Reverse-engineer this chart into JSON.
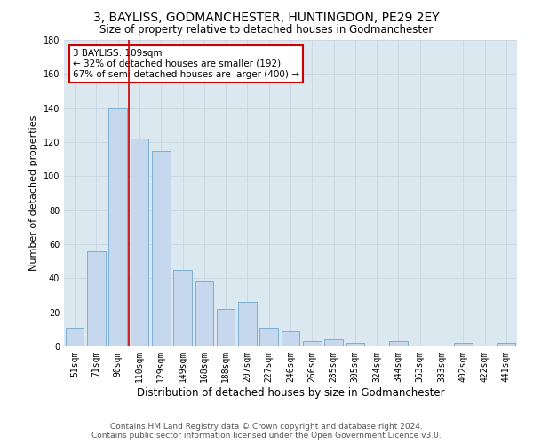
{
  "title1": "3, BAYLISS, GODMANCHESTER, HUNTINGDON, PE29 2EY",
  "title2": "Size of property relative to detached houses in Godmanchester",
  "xlabel": "Distribution of detached houses by size in Godmanchester",
  "ylabel": "Number of detached properties",
  "categories": [
    "51sqm",
    "71sqm",
    "90sqm",
    "110sqm",
    "129sqm",
    "149sqm",
    "168sqm",
    "188sqm",
    "207sqm",
    "227sqm",
    "246sqm",
    "266sqm",
    "285sqm",
    "305sqm",
    "324sqm",
    "344sqm",
    "363sqm",
    "383sqm",
    "402sqm",
    "422sqm",
    "441sqm"
  ],
  "values": [
    11,
    56,
    140,
    122,
    115,
    45,
    38,
    22,
    26,
    11,
    9,
    3,
    4,
    2,
    0,
    3,
    0,
    0,
    2,
    0,
    2
  ],
  "bar_color": "#c5d8ed",
  "bar_edge_color": "#7bafd4",
  "vline_color": "#cc0000",
  "vline_x": 2.5,
  "annotation_text": "3 BAYLISS: 109sqm\n← 32% of detached houses are smaller (192)\n67% of semi-detached houses are larger (400) →",
  "annotation_box_color": "#ffffff",
  "annotation_box_edge": "#cc0000",
  "grid_color": "#c8d4e0",
  "background_color": "#dce8f0",
  "ylim": [
    0,
    180
  ],
  "yticks": [
    0,
    20,
    40,
    60,
    80,
    100,
    120,
    140,
    160,
    180
  ],
  "footer1": "Contains HM Land Registry data © Crown copyright and database right 2024.",
  "footer2": "Contains public sector information licensed under the Open Government Licence v3.0.",
  "title1_fontsize": 10,
  "title2_fontsize": 8.5,
  "xlabel_fontsize": 8.5,
  "ylabel_fontsize": 8,
  "tick_fontsize": 7,
  "annotation_fontsize": 7.5,
  "footer_fontsize": 6.5
}
